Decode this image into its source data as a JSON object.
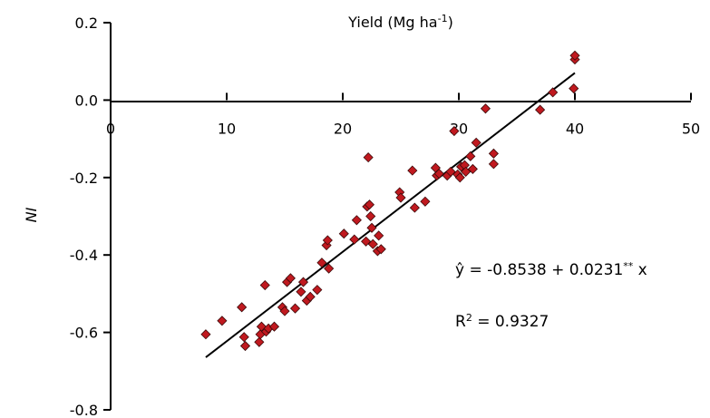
{
  "chart_data": {
    "type": "scatter",
    "title": "",
    "xlabel": "Yield (Mg ha",
    "xlabel_sup": "-1",
    "xlabel_end": ")",
    "ylabel": "NI",
    "xlim": [
      0,
      50
    ],
    "ylim": [
      -0.8,
      0.2
    ],
    "x_ticks": [
      0,
      10,
      20,
      30,
      40,
      50
    ],
    "x_tick_labels": [
      "0",
      "10",
      "20",
      "30",
      "40",
      "50"
    ],
    "y_ticks": [
      0.2,
      0.0,
      -0.2,
      -0.4,
      -0.6,
      -0.8
    ],
    "y_tick_labels": [
      "0.2",
      "0.0",
      "-0.2",
      "-0.4",
      "-0.6",
      "-0.8"
    ],
    "grid": false,
    "marker": "diamond",
    "marker_color": "#c0191f",
    "marker_edge_color": "#3a0a0a",
    "line_color": "#000000",
    "fit_line": {
      "intercept": -0.8538,
      "slope": 0.0231,
      "x_range": [
        8.2,
        40
      ]
    },
    "equation": {
      "prefix": "ŷ = -0.8538 + 0.0231",
      "sup": "**",
      "suffix": " x"
    },
    "r_squared": {
      "prefix": "R",
      "sup": "2",
      "suffix": " = 0.9327"
    },
    "points": [
      {
        "x": 8.2,
        "y": -0.605
      },
      {
        "x": 9.6,
        "y": -0.57
      },
      {
        "x": 11.3,
        "y": -0.535
      },
      {
        "x": 11.5,
        "y": -0.612
      },
      {
        "x": 11.6,
        "y": -0.635
      },
      {
        "x": 12.8,
        "y": -0.625
      },
      {
        "x": 12.9,
        "y": -0.605
      },
      {
        "x": 13.0,
        "y": -0.585
      },
      {
        "x": 13.3,
        "y": -0.478
      },
      {
        "x": 13.4,
        "y": -0.598
      },
      {
        "x": 13.6,
        "y": -0.59
      },
      {
        "x": 14.1,
        "y": -0.585
      },
      {
        "x": 14.8,
        "y": -0.535
      },
      {
        "x": 15.0,
        "y": -0.545
      },
      {
        "x": 15.2,
        "y": -0.47
      },
      {
        "x": 15.5,
        "y": -0.46
      },
      {
        "x": 15.9,
        "y": -0.538
      },
      {
        "x": 16.4,
        "y": -0.495
      },
      {
        "x": 16.6,
        "y": -0.47
      },
      {
        "x": 16.9,
        "y": -0.518
      },
      {
        "x": 17.2,
        "y": -0.508
      },
      {
        "x": 17.8,
        "y": -0.49
      },
      {
        "x": 18.2,
        "y": -0.42
      },
      {
        "x": 18.6,
        "y": -0.375
      },
      {
        "x": 18.7,
        "y": -0.362
      },
      {
        "x": 18.8,
        "y": -0.435
      },
      {
        "x": 20.1,
        "y": -0.345
      },
      {
        "x": 21.0,
        "y": -0.36
      },
      {
        "x": 21.2,
        "y": -0.31
      },
      {
        "x": 22.0,
        "y": -0.365
      },
      {
        "x": 22.1,
        "y": -0.275
      },
      {
        "x": 22.2,
        "y": -0.148
      },
      {
        "x": 22.3,
        "y": -0.27
      },
      {
        "x": 22.4,
        "y": -0.3
      },
      {
        "x": 22.5,
        "y": -0.33
      },
      {
        "x": 22.6,
        "y": -0.372
      },
      {
        "x": 23.0,
        "y": -0.39
      },
      {
        "x": 23.1,
        "y": -0.35
      },
      {
        "x": 23.3,
        "y": -0.385
      },
      {
        "x": 24.9,
        "y": -0.238
      },
      {
        "x": 25.0,
        "y": -0.252
      },
      {
        "x": 26.0,
        "y": -0.182
      },
      {
        "x": 26.2,
        "y": -0.278
      },
      {
        "x": 27.1,
        "y": -0.262
      },
      {
        "x": 28.0,
        "y": -0.175
      },
      {
        "x": 28.1,
        "y": -0.195
      },
      {
        "x": 28.3,
        "y": -0.19
      },
      {
        "x": 29.0,
        "y": -0.195
      },
      {
        "x": 29.3,
        "y": -0.185
      },
      {
        "x": 29.6,
        "y": -0.08
      },
      {
        "x": 29.9,
        "y": -0.192
      },
      {
        "x": 30.1,
        "y": -0.2
      },
      {
        "x": 30.2,
        "y": -0.172
      },
      {
        "x": 30.5,
        "y": -0.168
      },
      {
        "x": 30.6,
        "y": -0.185
      },
      {
        "x": 31.0,
        "y": -0.145
      },
      {
        "x": 31.2,
        "y": -0.178
      },
      {
        "x": 31.5,
        "y": -0.11
      },
      {
        "x": 32.3,
        "y": -0.022
      },
      {
        "x": 33.0,
        "y": -0.138
      },
      {
        "x": 33.0,
        "y": -0.165
      },
      {
        "x": 37.0,
        "y": -0.025
      },
      {
        "x": 38.1,
        "y": 0.02
      },
      {
        "x": 39.9,
        "y": 0.03
      },
      {
        "x": 40.0,
        "y": 0.105
      },
      {
        "x": 40.0,
        "y": 0.115
      }
    ]
  }
}
